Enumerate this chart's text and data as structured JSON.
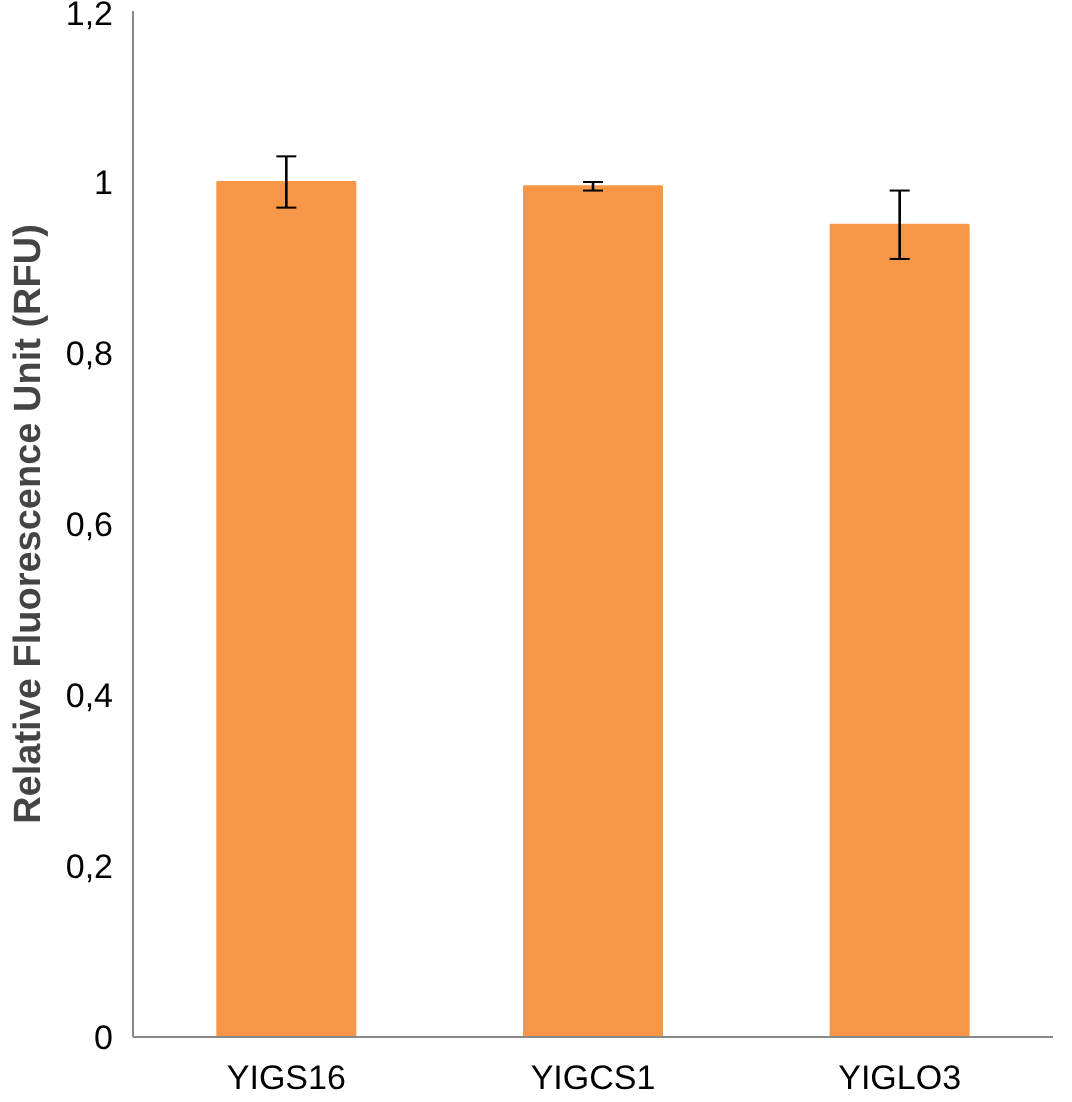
{
  "chart_data": {
    "type": "bar",
    "ylabel": "Relative Fluorescence Unit (RFU)",
    "categories": [
      "YIGS16",
      "YIGCS1",
      "YIGLO3"
    ],
    "values": [
      1.0,
      0.995,
      0.95
    ],
    "errors": [
      0.03,
      0.005,
      0.04
    ],
    "color": "#f79646",
    "ylim": [
      0,
      1.2
    ],
    "yticks": [
      0,
      {
        "value": 0.2,
        "label": "0,2"
      },
      {
        "value": 0.4,
        "label": "0,4"
      },
      {
        "value": 0.6,
        "label": "0,6"
      },
      {
        "value": 0.8,
        "label": "0,8"
      },
      1,
      {
        "value": 1.2,
        "label": "1,2"
      }
    ],
    "grid": false
  }
}
